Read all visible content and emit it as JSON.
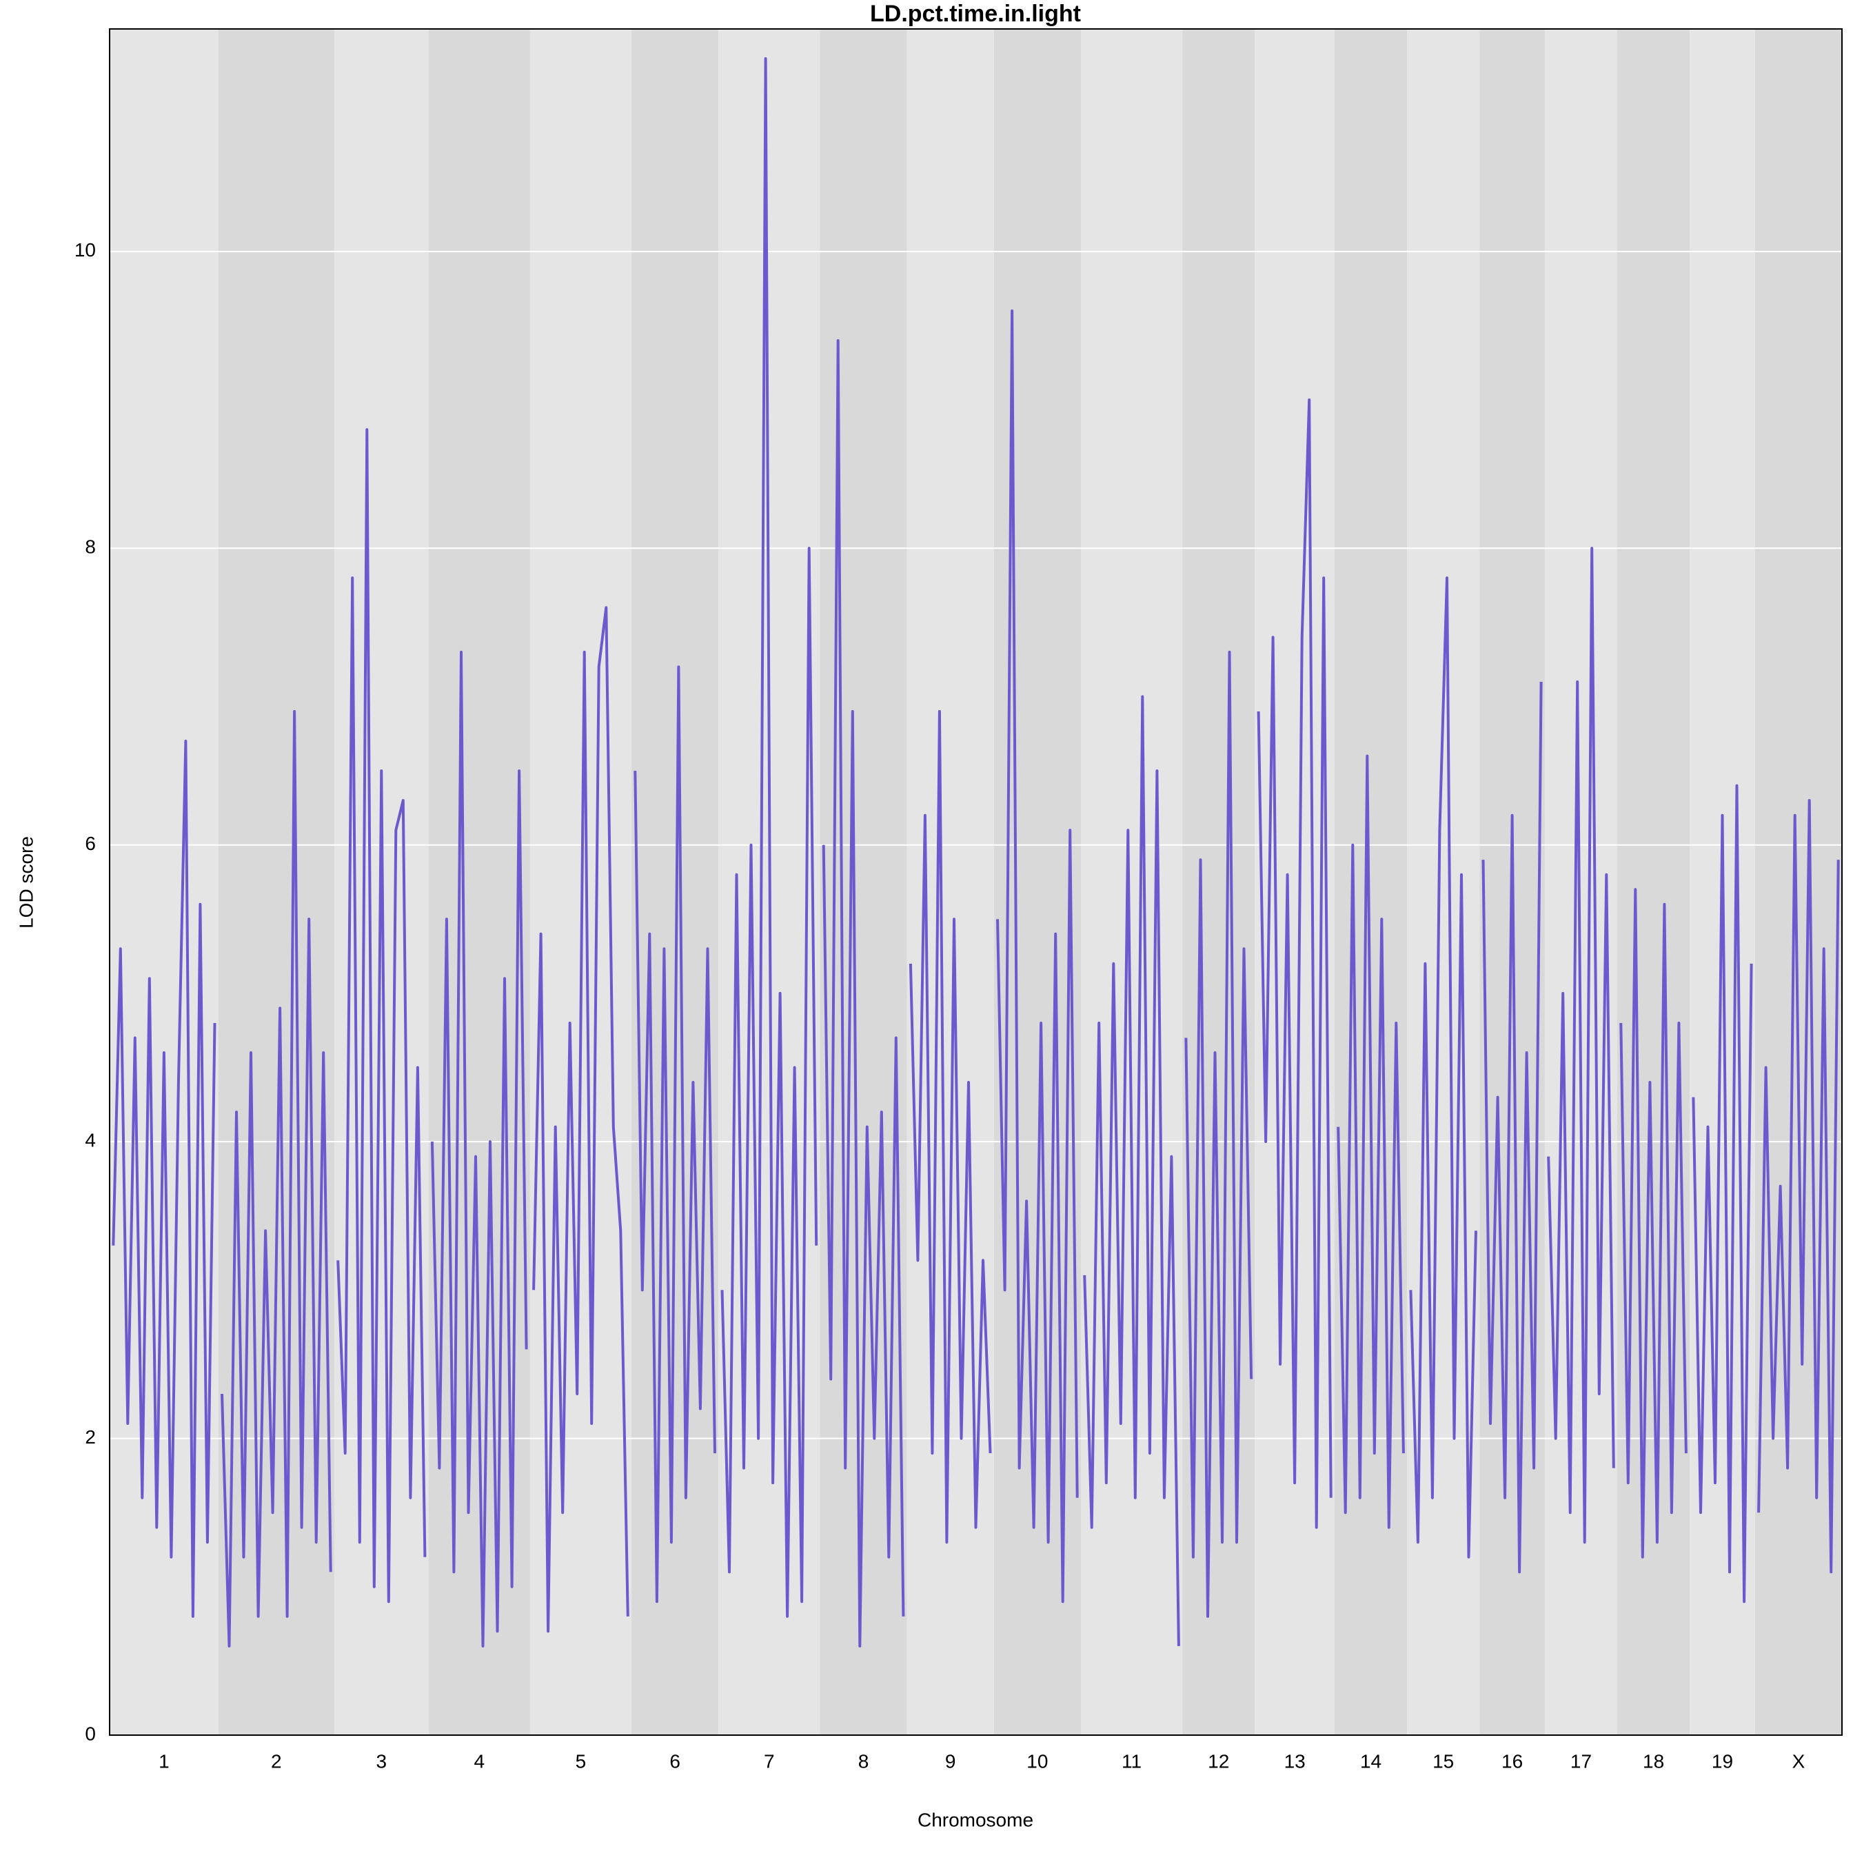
{
  "chart_data": {
    "type": "lod",
    "title": "LD.pct.time.in.light",
    "x_label": "Chromosome",
    "y_label": "LOD score",
    "color": "#6a5acd",
    "band_colors": [
      "#e5e5e5",
      "#d9d9d9"
    ],
    "grid": true,
    "ylim": [
      0,
      11.5
    ],
    "yticks": [
      0,
      2,
      4,
      6,
      8,
      10
    ],
    "chromosomes": [
      {
        "name": "1",
        "values": [
          3.3,
          5.3,
          2.1,
          4.7,
          1.6,
          5.1,
          1.4,
          4.6,
          1.2,
          4.4,
          6.7,
          0.8,
          5.6,
          1.3,
          4.8
        ]
      },
      {
        "name": "2",
        "values": [
          2.3,
          0.6,
          4.2,
          1.2,
          4.6,
          0.8,
          3.4,
          1.5,
          4.9,
          0.8,
          6.9,
          1.4,
          5.5,
          1.3,
          4.6,
          1.1
        ]
      },
      {
        "name": "3",
        "values": [
          3.2,
          1.9,
          7.8,
          1.3,
          8.8,
          1.0,
          6.5,
          0.9,
          6.1,
          6.3,
          1.6,
          4.5,
          1.2
        ]
      },
      {
        "name": "4",
        "values": [
          4.0,
          1.8,
          5.5,
          1.1,
          7.3,
          1.5,
          3.9,
          0.6,
          4.0,
          0.7,
          5.1,
          1.0,
          6.5,
          2.6
        ]
      },
      {
        "name": "5",
        "values": [
          3.0,
          5.4,
          0.7,
          4.1,
          1.5,
          4.8,
          2.3,
          7.3,
          2.1,
          7.2,
          7.6,
          4.1,
          3.4,
          0.8
        ]
      },
      {
        "name": "6",
        "values": [
          6.5,
          3.0,
          5.4,
          0.9,
          5.3,
          1.3,
          7.2,
          1.6,
          4.4,
          2.2,
          5.3,
          1.9
        ]
      },
      {
        "name": "7",
        "values": [
          3.0,
          1.1,
          5.8,
          1.8,
          6.0,
          2.0,
          11.3,
          1.7,
          5.0,
          0.8,
          4.5,
          0.9,
          8.0,
          3.3
        ]
      },
      {
        "name": "8",
        "values": [
          6.0,
          2.4,
          9.4,
          1.8,
          6.9,
          0.6,
          4.1,
          2.0,
          4.2,
          1.2,
          4.7,
          0.8
        ]
      },
      {
        "name": "9",
        "values": [
          5.2,
          3.2,
          6.2,
          1.9,
          6.9,
          1.3,
          5.5,
          2.0,
          4.4,
          1.4,
          3.2,
          1.9
        ]
      },
      {
        "name": "10",
        "values": [
          5.5,
          3.0,
          9.6,
          1.8,
          3.6,
          1.4,
          4.8,
          1.3,
          5.4,
          0.9,
          6.1,
          1.6
        ]
      },
      {
        "name": "11",
        "values": [
          3.1,
          1.4,
          4.8,
          1.7,
          5.2,
          2.1,
          6.1,
          1.6,
          7.0,
          1.9,
          6.5,
          1.6,
          3.9,
          0.6
        ]
      },
      {
        "name": "12",
        "values": [
          4.7,
          1.2,
          5.9,
          0.8,
          4.6,
          1.3,
          7.3,
          1.3,
          5.3,
          2.4
        ]
      },
      {
        "name": "13",
        "values": [
          6.9,
          4.0,
          7.4,
          2.5,
          5.8,
          1.7,
          7.4,
          9.0,
          1.4,
          7.8,
          1.6
        ]
      },
      {
        "name": "14",
        "values": [
          4.1,
          1.5,
          6.0,
          1.6,
          6.6,
          1.9,
          5.5,
          1.4,
          4.8,
          1.9
        ]
      },
      {
        "name": "15",
        "values": [
          3.0,
          1.3,
          5.2,
          1.6,
          6.1,
          7.8,
          2.0,
          5.8,
          1.2,
          3.4
        ]
      },
      {
        "name": "16",
        "values": [
          5.9,
          2.1,
          4.3,
          1.6,
          6.2,
          1.1,
          4.6,
          1.8,
          7.1
        ]
      },
      {
        "name": "17",
        "values": [
          3.9,
          2.0,
          5.0,
          1.5,
          7.1,
          1.3,
          8.0,
          2.3,
          5.8,
          1.8
        ]
      },
      {
        "name": "18",
        "values": [
          4.8,
          1.7,
          5.7,
          1.2,
          4.4,
          1.3,
          5.6,
          1.5,
          4.8,
          1.9
        ]
      },
      {
        "name": "19",
        "values": [
          4.3,
          1.5,
          4.1,
          1.7,
          6.2,
          1.1,
          6.4,
          0.9,
          5.2
        ]
      },
      {
        "name": "X",
        "values": [
          1.5,
          4.5,
          2.0,
          3.7,
          1.8,
          6.2,
          2.5,
          6.3,
          1.6,
          5.3,
          1.1,
          5.9
        ]
      }
    ]
  }
}
